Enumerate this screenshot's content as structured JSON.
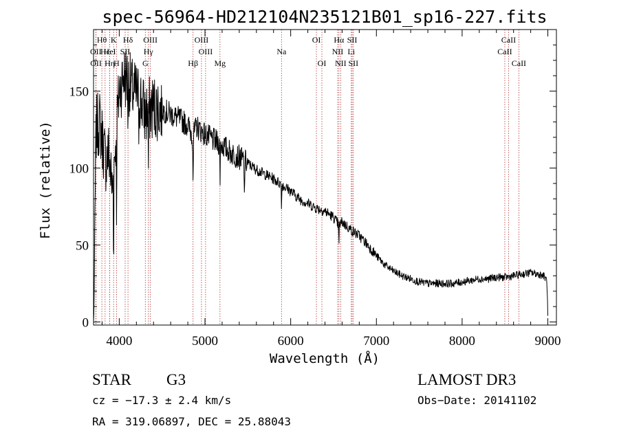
{
  "chart_data": {
    "type": "line",
    "title": "spec-56964-HD212104N235121B01_sp16-227.fits",
    "xlabel": "Wavelength (Å)",
    "ylabel": "Flux (relative)",
    "xlim": [
      3700,
      9100
    ],
    "ylim": [
      -2,
      190
    ],
    "x_ticks": [
      4000,
      5000,
      6000,
      7000,
      8000,
      9000
    ],
    "x_tick_labels": [
      "4000",
      "5000",
      "6000",
      "7000",
      "8000",
      "9000"
    ],
    "y_ticks": [
      0,
      50,
      100,
      150
    ],
    "y_tick_labels": [
      "0",
      "50",
      "100",
      "150"
    ],
    "line_color": "#000000",
    "marker_color": "#b03030",
    "spectrum_anchors": {
      "x": [
        3700,
        3730,
        3770,
        3800,
        3840,
        3880,
        3920,
        3960,
        4000,
        4050,
        4100,
        4150,
        4200,
        4250,
        4300,
        4350,
        4400,
        4500,
        4600,
        4700,
        4800,
        4860,
        4900,
        5000,
        5100,
        5200,
        5300,
        5400,
        5500,
        5600,
        5700,
        5800,
        5900,
        6000,
        6100,
        6200,
        6300,
        6400,
        6500,
        6560,
        6600,
        6700,
        6800,
        6900,
        7000,
        7100,
        7200,
        7300,
        7400,
        7500,
        7600,
        7700,
        7800,
        7900,
        8000,
        8100,
        8200,
        8300,
        8400,
        8500,
        8600,
        8700,
        8800,
        8900,
        8950,
        8990,
        9000
      ],
      "y": [
        0,
        125,
        130,
        120,
        105,
        110,
        85,
        120,
        150,
        160,
        158,
        150,
        148,
        145,
        135,
        138,
        140,
        138,
        135,
        132,
        128,
        120,
        127,
        122,
        118,
        115,
        110,
        107,
        103,
        99,
        96,
        93,
        89,
        85,
        80,
        77,
        74,
        72,
        68,
        63,
        65,
        60,
        56,
        50,
        43,
        37,
        33,
        30,
        28,
        26,
        25,
        25,
        25,
        25,
        26,
        27,
        28,
        28,
        29,
        29,
        30,
        31,
        32,
        31,
        30,
        27,
        3
      ]
    },
    "spectral_lines": [
      {
        "label": "Hθ",
        "wavelength": 3797,
        "row": 0
      },
      {
        "label": "K",
        "wavelength": 3934,
        "row": 0
      },
      {
        "label": "Hδ",
        "wavelength": 4102,
        "row": 0
      },
      {
        "label": "OIII",
        "wavelength": 4363,
        "row": 0
      },
      {
        "label": "OIII",
        "wavelength": 4959,
        "row": 0
      },
      {
        "label": "OI",
        "wavelength": 6300,
        "row": 0
      },
      {
        "label": "Hα",
        "wavelength": 6563,
        "row": 0
      },
      {
        "label": "SII",
        "wavelength": 6717,
        "row": 0
      },
      {
        "label": "CaII",
        "wavelength": 8542,
        "row": 0
      },
      {
        "label": "OII",
        "wavelength": 3727,
        "row": 1
      },
      {
        "label": "Hε",
        "wavelength": 3835,
        "row": 1
      },
      {
        "label": "HeI",
        "wavelength": 3889,
        "row": 1
      },
      {
        "label": "SII",
        "wavelength": 4069,
        "row": 1
      },
      {
        "label": "Hγ",
        "wavelength": 4340,
        "row": 1
      },
      {
        "label": "OIII",
        "wavelength": 5007,
        "row": 1
      },
      {
        "label": "Na",
        "wavelength": 5893,
        "row": 1
      },
      {
        "label": "NII",
        "wavelength": 6548,
        "row": 1
      },
      {
        "label": "Li",
        "wavelength": 6707,
        "row": 1
      },
      {
        "label": "CaII",
        "wavelength": 8498,
        "row": 1
      },
      {
        "label": "OII",
        "wavelength": 3729,
        "row": 2
      },
      {
        "label": "Hη",
        "wavelength": 3889,
        "row": 2
      },
      {
        "label": "H",
        "wavelength": 3968,
        "row": 2
      },
      {
        "label": "G",
        "wavelength": 4304,
        "row": 2
      },
      {
        "label": "Hβ",
        "wavelength": 4861,
        "row": 2
      },
      {
        "label": "Mg",
        "wavelength": 5175,
        "row": 2
      },
      {
        "label": "OI",
        "wavelength": 6364,
        "row": 2
      },
      {
        "label": "NII",
        "wavelength": 6583,
        "row": 2
      },
      {
        "label": "SII",
        "wavelength": 6731,
        "row": 2
      },
      {
        "label": "CaII",
        "wavelength": 8662,
        "row": 2
      }
    ]
  },
  "info": {
    "class": "STAR",
    "subclass": "G3",
    "survey": "LAMOST DR3",
    "cz": "cz = −17.3 ± 2.4 km/s",
    "obs_date": "Obs−Date: 20141102",
    "coords": "RA = 319.06897, DEC =  25.88043"
  }
}
